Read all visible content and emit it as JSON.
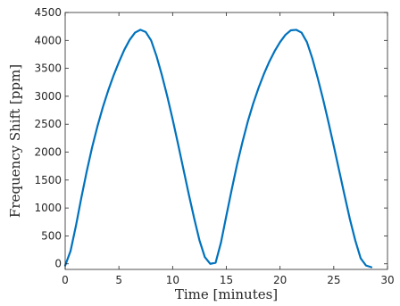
{
  "chart_data": {
    "type": "line",
    "title": "",
    "xlabel": "Time [minutes]",
    "ylabel": "Frequency Shift [ppm]",
    "xlim": [
      0,
      30
    ],
    "ylim": [
      -100,
      4500
    ],
    "x_ticks": [
      0,
      5,
      10,
      15,
      20,
      25,
      30
    ],
    "y_ticks": [
      0,
      500,
      1000,
      1500,
      2000,
      2500,
      3000,
      3500,
      4000,
      4500
    ],
    "x_tick_labels": [
      "0",
      "5",
      "10",
      "15",
      "20",
      "25",
      "30"
    ],
    "y_tick_labels": [
      "0",
      "500",
      "1000",
      "1500",
      "2000",
      "2500",
      "3000",
      "3500",
      "4000",
      "4500"
    ],
    "grid": false,
    "legend": "none",
    "series": [
      {
        "color": "#0072BD",
        "x": [
          0,
          0.5,
          1,
          1.5,
          2,
          2.5,
          3,
          3.5,
          4,
          4.5,
          5,
          5.5,
          6,
          6.5,
          7,
          7.5,
          8,
          8.5,
          9,
          9.5,
          10,
          10.5,
          11,
          11.5,
          12,
          12.5,
          13,
          13.5,
          14,
          14.5,
          15,
          15.5,
          16,
          16.5,
          17,
          17.5,
          18,
          18.5,
          19,
          19.5,
          20,
          20.5,
          21,
          21.5,
          22,
          22.5,
          23,
          23.5,
          24,
          24.5,
          25,
          25.5,
          26,
          26.5,
          27,
          27.5,
          28,
          28.5
        ],
        "y": [
          -30,
          230,
          680,
          1180,
          1650,
          2080,
          2460,
          2800,
          3100,
          3370,
          3610,
          3830,
          4010,
          4140,
          4190,
          4150,
          4000,
          3720,
          3380,
          3000,
          2590,
          2150,
          1700,
          1250,
          820,
          420,
          120,
          0,
          20,
          380,
          860,
          1330,
          1780,
          2180,
          2550,
          2870,
          3150,
          3400,
          3620,
          3810,
          3970,
          4100,
          4180,
          4190,
          4140,
          3970,
          3680,
          3330,
          2950,
          2540,
          2110,
          1670,
          1230,
          800,
          420,
          100,
          -30,
          -60
        ]
      }
    ]
  }
}
